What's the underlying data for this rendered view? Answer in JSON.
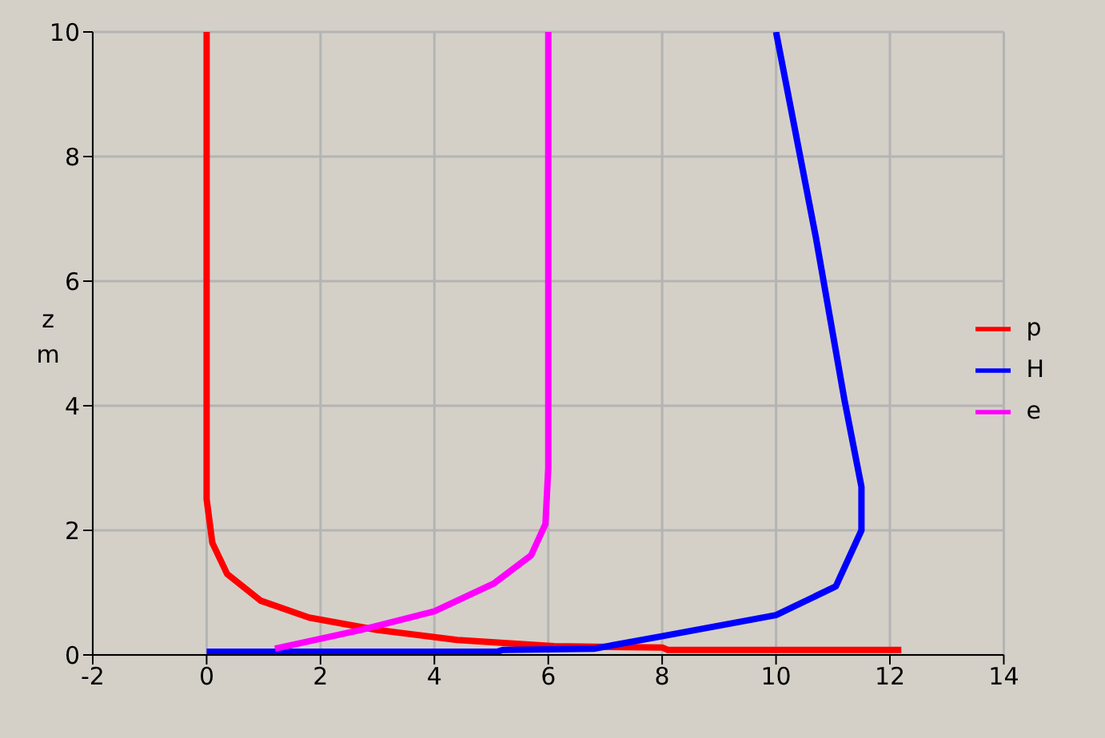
{
  "chart_data": {
    "type": "line",
    "ylabel": "z m",
    "xlim": [
      -2,
      14
    ],
    "xticks": [
      -2,
      0,
      2,
      4,
      6,
      8,
      10,
      12,
      14
    ],
    "ylim": [
      0,
      10
    ],
    "yticks": [
      0,
      2,
      4,
      6,
      8,
      10
    ],
    "grid": true,
    "legend": "right",
    "marker": "none",
    "line_style": "solid",
    "series": [
      {
        "name": "p",
        "color": "#ff0000",
        "x": [
          12.2,
          8.1,
          8,
          6.1,
          4.4,
          3,
          1.8,
          0.95,
          0.36,
          0.1,
          0,
          0
        ],
        "values": [
          0.08,
          0.08,
          0.12,
          0.14,
          0.24,
          0.4,
          0.6,
          0.87,
          1.3,
          1.8,
          2.5,
          10
        ]
      },
      {
        "name": "H",
        "color": "#0000ff",
        "x": [
          0,
          5.1,
          5.2,
          6.8,
          8.05,
          10,
          11.05,
          11.5,
          11.5,
          11.2,
          10.7,
          10
        ],
        "values": [
          0.05,
          0.05,
          0.08,
          0.1,
          0.31,
          0.64,
          1.1,
          2,
          2.7,
          4.1,
          6.7,
          10
        ]
      },
      {
        "name": "e",
        "color": "#ff00ff",
        "x": [
          1.2,
          2.7,
          4,
          5.05,
          5.7,
          5.95,
          6,
          6
        ],
        "values": [
          0.1,
          0.4,
          0.7,
          1.15,
          1.6,
          2.1,
          3,
          10
        ]
      }
    ]
  }
}
